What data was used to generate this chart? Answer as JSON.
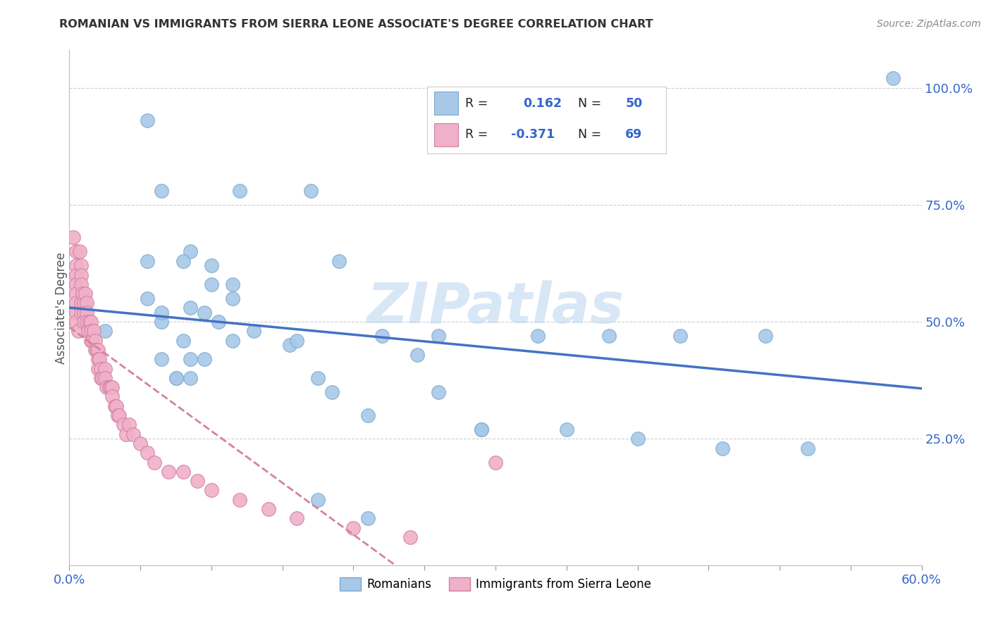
{
  "title": "ROMANIAN VS IMMIGRANTS FROM SIERRA LEONE ASSOCIATE'S DEGREE CORRELATION CHART",
  "source": "Source: ZipAtlas.com",
  "ylabel": "Associate's Degree",
  "y_tick_values": [
    0.25,
    0.5,
    0.75,
    1.0
  ],
  "y_tick_labels": [
    "25.0%",
    "50.0%",
    "75.0%",
    "100.0%"
  ],
  "x_min": 0.0,
  "x_max": 0.6,
  "y_min": -0.02,
  "y_max": 1.08,
  "r_romanian": 0.162,
  "n_romanian": 50,
  "r_sierraleone": -0.371,
  "n_sierraleone": 69,
  "color_romanian": "#a8c8e8",
  "color_sierraleone": "#f0b0c8",
  "color_trendline_romanian": "#4472c4",
  "color_trendline_sierraleone": "#d4829a",
  "watermark": "ZIPatlas",
  "grid_color": "#d0d0d0",
  "rom_x": [
    0.025,
    0.055,
    0.065,
    0.055,
    0.085,
    0.1,
    0.115,
    0.095,
    0.085,
    0.075,
    0.065,
    0.055,
    0.065,
    0.075,
    0.065,
    0.08,
    0.115,
    0.13,
    0.155,
    0.16,
    0.085,
    0.1,
    0.105,
    0.115,
    0.095,
    0.085,
    0.08,
    0.12,
    0.17,
    0.19,
    0.175,
    0.185,
    0.21,
    0.22,
    0.245,
    0.26,
    0.29,
    0.175,
    0.21,
    0.26,
    0.29,
    0.33,
    0.35,
    0.38,
    0.4,
    0.43,
    0.46,
    0.49,
    0.52,
    0.58
  ],
  "rom_y": [
    0.48,
    0.93,
    0.78,
    0.63,
    0.65,
    0.62,
    0.58,
    0.52,
    0.42,
    0.38,
    0.5,
    0.55,
    0.42,
    0.38,
    0.52,
    0.46,
    0.46,
    0.48,
    0.45,
    0.46,
    0.53,
    0.58,
    0.5,
    0.55,
    0.42,
    0.38,
    0.63,
    0.78,
    0.78,
    0.63,
    0.38,
    0.35,
    0.3,
    0.47,
    0.43,
    0.35,
    0.27,
    0.12,
    0.08,
    0.47,
    0.27,
    0.47,
    0.27,
    0.47,
    0.25,
    0.47,
    0.23,
    0.47,
    0.23,
    1.02
  ],
  "sl_x": [
    0.003,
    0.005,
    0.005,
    0.005,
    0.005,
    0.005,
    0.005,
    0.005,
    0.005,
    0.006,
    0.007,
    0.008,
    0.008,
    0.008,
    0.008,
    0.008,
    0.009,
    0.01,
    0.01,
    0.01,
    0.011,
    0.012,
    0.012,
    0.012,
    0.013,
    0.014,
    0.015,
    0.015,
    0.015,
    0.016,
    0.017,
    0.018,
    0.018,
    0.019,
    0.02,
    0.02,
    0.02,
    0.021,
    0.022,
    0.022,
    0.023,
    0.025,
    0.025,
    0.026,
    0.028,
    0.029,
    0.03,
    0.03,
    0.032,
    0.033,
    0.034,
    0.035,
    0.038,
    0.04,
    0.042,
    0.045,
    0.05,
    0.055,
    0.06,
    0.07,
    0.08,
    0.09,
    0.1,
    0.12,
    0.14,
    0.16,
    0.2,
    0.24,
    0.3
  ],
  "sl_y": [
    0.68,
    0.65,
    0.62,
    0.6,
    0.58,
    0.56,
    0.54,
    0.52,
    0.5,
    0.48,
    0.65,
    0.62,
    0.6,
    0.58,
    0.54,
    0.52,
    0.56,
    0.54,
    0.52,
    0.5,
    0.56,
    0.54,
    0.52,
    0.5,
    0.48,
    0.5,
    0.5,
    0.48,
    0.46,
    0.46,
    0.48,
    0.46,
    0.44,
    0.44,
    0.44,
    0.42,
    0.4,
    0.42,
    0.4,
    0.38,
    0.38,
    0.4,
    0.38,
    0.36,
    0.36,
    0.36,
    0.36,
    0.34,
    0.32,
    0.32,
    0.3,
    0.3,
    0.28,
    0.26,
    0.28,
    0.26,
    0.24,
    0.22,
    0.2,
    0.18,
    0.18,
    0.16,
    0.14,
    0.12,
    0.1,
    0.08,
    0.06,
    0.04,
    0.2
  ]
}
